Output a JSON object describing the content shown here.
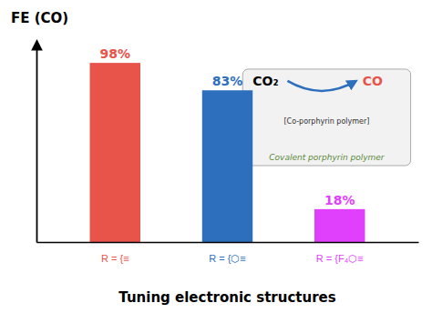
{
  "chart_data": {
    "type": "bar",
    "title": "Tuning electronic structures",
    "y_label": "FE (CO)",
    "categories": [
      "R = {≡",
      "R = {⬡≡",
      "R = {F₄⬡≡"
    ],
    "values": [
      98,
      83,
      18
    ],
    "value_labels": [
      "98%",
      "83%",
      "18%"
    ],
    "colors": [
      "#e8534a",
      "#2e6fbd",
      "#e040fb"
    ],
    "ylim": [
      0,
      110
    ],
    "data_labels": true,
    "tick_labels": "x",
    "grid": false,
    "annotations": [
      {
        "text": "CO₂",
        "color": "#000000"
      },
      {
        "text": "CO",
        "color": "#e8534a"
      },
      {
        "text": "Covalent porphyrin polymer",
        "color": "#5d8a3c"
      },
      {
        "text": "[Co-porphyrin polymer]",
        "color": "#333333"
      }
    ]
  }
}
